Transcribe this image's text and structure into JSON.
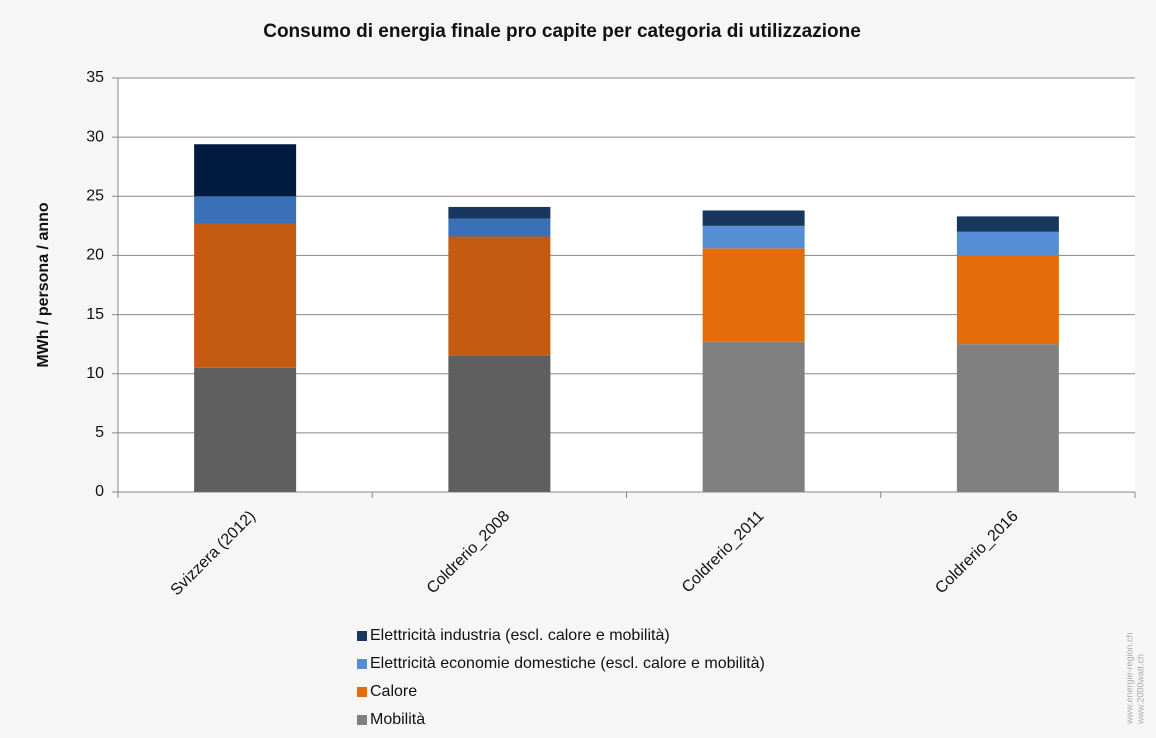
{
  "chart_data": {
    "type": "stacked_bar",
    "title": "Consumo di energia finale pro capite per categoria di utilizzazione",
    "y_label": "MWh / persona / anno",
    "categories": [
      "Svizzera (2012)",
      "Coldrerio_2008",
      "Coldrerio_2011",
      "Coldrerio_2016"
    ],
    "series": [
      {
        "name": "Mobilità",
        "color": "#808080",
        "bar_colors": [
          "#5f5f5f",
          "#5f5f5f",
          "#808080",
          "#808080"
        ],
        "values": [
          10.5,
          11.5,
          12.7,
          12.5
        ]
      },
      {
        "name": "Calore",
        "color": "#e46c0a",
        "bar_colors": [
          "#c55a11",
          "#c55a11",
          "#e46c0a",
          "#e46c0a"
        ],
        "values": [
          12.2,
          10.1,
          7.9,
          7.5
        ]
      },
      {
        "name": "Elettricità economie domestiche (escl. calore e mobilità)",
        "color": "#558ed5",
        "bar_colors": [
          "#3a70b8",
          "#3a70b8",
          "#558ed5",
          "#558ed5"
        ],
        "values": [
          2.3,
          1.5,
          1.9,
          2.0
        ]
      },
      {
        "name": "Elettricità industria (escl. calore e mobilità)",
        "color": "#17375e",
        "bar_colors": [
          "#001a40",
          "#17375e",
          "#17375e",
          "#17375e"
        ],
        "values": [
          4.4,
          1.0,
          1.3,
          1.3
        ]
      }
    ],
    "ylim": [
      0,
      35
    ],
    "yticks": [
      0,
      5,
      10,
      15,
      20,
      25,
      30,
      35
    ],
    "grid": true,
    "watermark": [
      "www.energie-region.ch",
      "www.2000watt.ch"
    ]
  }
}
